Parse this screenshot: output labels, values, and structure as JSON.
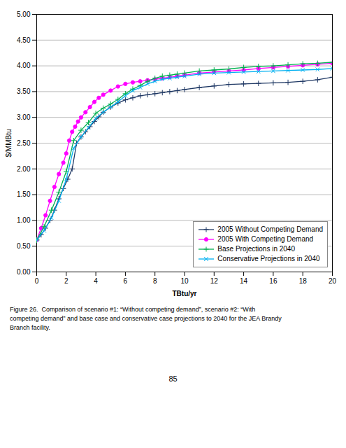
{
  "chart_data": {
    "type": "line",
    "xlabel": "TBtu/yr",
    "ylabel": "$/MMBtu",
    "xlim": [
      0,
      20
    ],
    "ylim": [
      0,
      5
    ],
    "xticks": [
      0,
      2,
      4,
      6,
      8,
      10,
      12,
      14,
      16,
      18,
      20
    ],
    "yticks": [
      {
        "value": 0,
        "label": "0.00"
      },
      {
        "value": 0.5,
        "label": "0.50"
      },
      {
        "value": 1,
        "label": "1.00"
      },
      {
        "value": 1.5,
        "label": "1.50"
      },
      {
        "value": 2,
        "label": "2.00"
      },
      {
        "value": 2.5,
        "label": "2.50"
      },
      {
        "value": 3,
        "label": "3.00"
      },
      {
        "value": 3.5,
        "label": "3.50"
      },
      {
        "value": 4,
        "label": "4.00"
      },
      {
        "value": 4.5,
        "label": "4.50"
      },
      {
        "value": 5,
        "label": "5.00"
      }
    ],
    "grid": "y",
    "legend": "lower right",
    "series": [
      {
        "name": "2005 Without Competing Demand",
        "color": "#1F3864",
        "marker": "plus",
        "x": [
          0.0,
          0.3,
          0.6,
          0.9,
          1.2,
          1.5,
          1.8,
          2.1,
          2.4,
          2.7,
          3.0,
          3.3,
          3.6,
          3.9,
          4.2,
          4.5,
          5.0,
          5.5,
          6.0,
          6.5,
          7.0,
          7.5,
          8.0,
          8.5,
          9.0,
          9.5,
          10.0,
          11.0,
          12.0,
          13.0,
          14.0,
          15.0,
          16.0,
          17.0,
          18.0,
          19.0,
          20.0
        ],
        "values": [
          0.62,
          0.72,
          0.85,
          1.0,
          1.2,
          1.42,
          1.62,
          1.8,
          2.0,
          2.5,
          2.62,
          2.72,
          2.82,
          2.92,
          3.01,
          3.1,
          3.2,
          3.28,
          3.34,
          3.38,
          3.42,
          3.44,
          3.46,
          3.48,
          3.5,
          3.52,
          3.54,
          3.58,
          3.61,
          3.64,
          3.65,
          3.66,
          3.67,
          3.68,
          3.7,
          3.73,
          3.78
        ]
      },
      {
        "name": "2005 With Competing Demand",
        "color": "#FF00FF",
        "marker": "circle",
        "x": [
          0.0,
          0.3,
          0.6,
          0.9,
          1.2,
          1.5,
          1.8,
          2.0,
          2.2,
          2.4,
          2.6,
          2.8,
          3.0,
          3.3,
          3.6,
          3.9,
          4.2,
          4.5,
          5.0,
          5.5,
          6.0,
          6.5,
          7.0,
          7.5,
          8.0,
          8.5,
          9.0,
          9.5,
          10.0,
          11.0,
          12.0,
          13.0,
          14.0,
          15.0,
          16.0,
          17.0,
          18.0,
          19.0,
          20.0
        ],
        "values": [
          0.62,
          0.85,
          1.1,
          1.38,
          1.65,
          1.9,
          2.12,
          2.3,
          2.55,
          2.72,
          2.82,
          2.92,
          3.0,
          3.1,
          3.2,
          3.3,
          3.38,
          3.44,
          3.52,
          3.6,
          3.65,
          3.68,
          3.7,
          3.72,
          3.74,
          3.76,
          3.78,
          3.8,
          3.82,
          3.86,
          3.88,
          3.9,
          3.92,
          3.95,
          3.97,
          3.99,
          4.01,
          4.03,
          4.05
        ]
      },
      {
        "name": "Base Projections in 2040",
        "color": "#00B050",
        "marker": "plus",
        "x": [
          0.0,
          0.5,
          1.0,
          1.5,
          2.0,
          2.5,
          3.0,
          3.5,
          4.0,
          4.5,
          5.0,
          5.5,
          6.0,
          6.5,
          7.0,
          7.5,
          8.0,
          8.5,
          9.0,
          9.5,
          10.0,
          11.0,
          12.0,
          13.0,
          14.0,
          15.0,
          16.0,
          17.0,
          18.0,
          19.0,
          20.0
        ],
        "values": [
          0.62,
          0.88,
          1.2,
          1.55,
          1.95,
          2.55,
          2.75,
          2.9,
          3.08,
          3.18,
          3.26,
          3.35,
          3.46,
          3.55,
          3.62,
          3.7,
          3.76,
          3.8,
          3.82,
          3.84,
          3.86,
          3.9,
          3.92,
          3.94,
          3.97,
          3.99,
          4.0,
          4.02,
          4.04,
          4.05,
          4.07
        ]
      },
      {
        "name": "Conservative Projections in 2040",
        "color": "#00B0F0",
        "marker": "times",
        "x": [
          0.0,
          0.5,
          1.0,
          1.5,
          2.0,
          2.5,
          3.0,
          3.5,
          4.0,
          4.5,
          5.0,
          5.5,
          6.0,
          6.5,
          7.0,
          7.5,
          8.0,
          8.5,
          9.0,
          9.5,
          10.0,
          11.0,
          12.0,
          13.0,
          14.0,
          15.0,
          16.0,
          17.0,
          18.0,
          19.0,
          20.0
        ],
        "values": [
          0.62,
          0.8,
          1.05,
          1.38,
          1.8,
          2.4,
          2.62,
          2.8,
          2.98,
          3.1,
          3.2,
          3.3,
          3.42,
          3.52,
          3.58,
          3.65,
          3.7,
          3.74,
          3.76,
          3.78,
          3.8,
          3.84,
          3.86,
          3.87,
          3.88,
          3.89,
          3.9,
          3.91,
          3.92,
          3.93,
          3.95
        ]
      }
    ],
    "caption": [
      "Figure 26.  Comparison of scenario #1: “Without competing demand”, scenario #2: “With",
      "competing demand” and base case and conservative case projections to 2040 for the JEA Brandy",
      "Branch facility."
    ],
    "annotations": [
      "85"
    ]
  }
}
